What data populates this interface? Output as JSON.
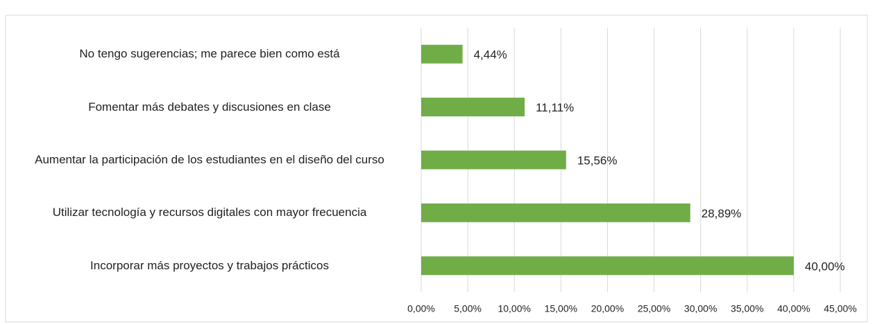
{
  "chart_data": {
    "type": "bar",
    "orientation": "horizontal",
    "categories": [
      "No tengo sugerencias; me parece bien como está",
      "Fomentar más debates y discusiones en clase",
      "Aumentar la participación de los estudiantes en el diseño del curso",
      "Utilizar tecnología y recursos digitales con mayor frecuencia",
      "Incorporar más proyectos y trabajos prácticos"
    ],
    "values": [
      4.44,
      11.11,
      15.56,
      28.89,
      40.0
    ],
    "value_labels": [
      "4,44%",
      "11,11%",
      "15,56%",
      "28,89%",
      "40,00%"
    ],
    "color": "#70ad47",
    "xlim": [
      0,
      45
    ],
    "xticks": [
      {
        "value": 0,
        "label": "0,00%"
      },
      {
        "value": 5,
        "label": "5,00%"
      },
      {
        "value": 10,
        "label": "10,00%"
      },
      {
        "value": 15,
        "label": "15,00%"
      },
      {
        "value": 20,
        "label": "20,00%"
      },
      {
        "value": 25,
        "label": "25,00%"
      },
      {
        "value": 30,
        "label": "30,00%"
      },
      {
        "value": 35,
        "label": "35,00%"
      },
      {
        "value": 40,
        "label": "40,00%"
      },
      {
        "value": 45,
        "label": "45,00%"
      }
    ],
    "grid": true
  }
}
